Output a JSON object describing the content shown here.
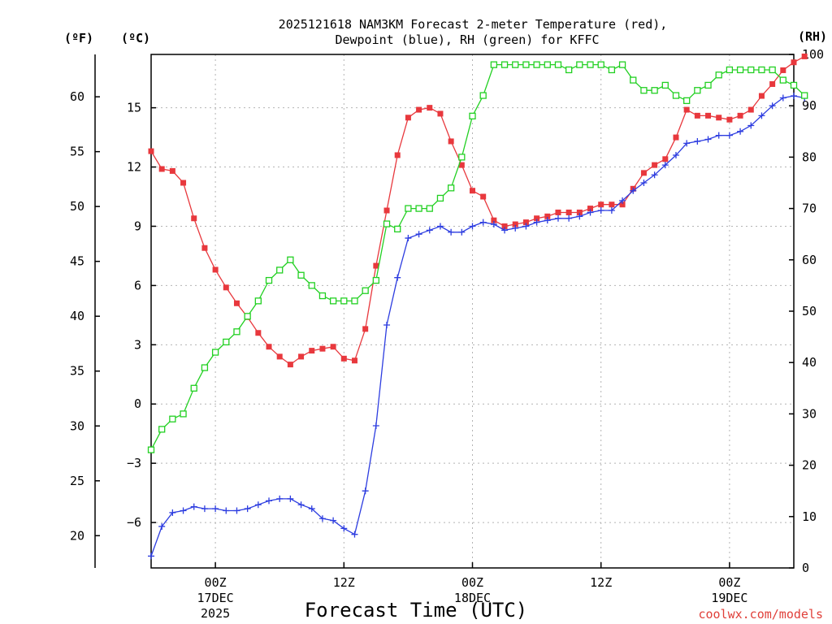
{
  "chart_data": {
    "type": "line",
    "title_line1": "2025121618 NAM3KM Forecast 2-meter Temperature (red),",
    "title_line2": "Dewpoint (blue), RH (green) for KFFC",
    "xlabel": "Forecast Time (UTC)",
    "credit": "coolwx.com/models",
    "units": {
      "fahrenheit": "(ºF)",
      "celsius": "(ºC)",
      "rh": "(RH)"
    },
    "x_range_hours": [
      0,
      60
    ],
    "x_ticks": [
      {
        "hour": 6,
        "label": "00Z",
        "date": "17DEC",
        "year": "2025"
      },
      {
        "hour": 18,
        "label": "12Z",
        "date": "",
        "year": ""
      },
      {
        "hour": 30,
        "label": "00Z",
        "date": "18DEC",
        "year": ""
      },
      {
        "hour": 42,
        "label": "12Z",
        "date": "",
        "year": ""
      },
      {
        "hour": 54,
        "label": "00Z",
        "date": "19DEC",
        "year": ""
      }
    ],
    "celsius_axis": {
      "range": [
        -8.3,
        17.7
      ],
      "ticks": [
        "-6",
        "-3",
        "0",
        "3",
        "6",
        "9",
        "12",
        "15"
      ]
    },
    "fahrenheit_axis": {
      "range": [
        17.06,
        63.86
      ],
      "ticks": [
        "20",
        "25",
        "30",
        "35",
        "40",
        "45",
        "50",
        "55",
        "60"
      ]
    },
    "rh_axis": {
      "range": [
        0,
        100
      ],
      "ticks": [
        "0",
        "10",
        "20",
        "30",
        "40",
        "50",
        "60",
        "70",
        "80",
        "90",
        "100"
      ]
    },
    "grid": true,
    "series": [
      {
        "name": "2-meter Temperature (°C)",
        "color": "#e8383d",
        "marker": "filled-square",
        "axis": "celsius",
        "values": [
          12.8,
          11.9,
          11.8,
          11.2,
          9.4,
          7.9,
          6.8,
          5.9,
          5.1,
          4.4,
          3.6,
          2.9,
          2.4,
          2.0,
          2.4,
          2.7,
          2.8,
          2.9,
          2.3,
          2.2,
          3.8,
          7.0,
          9.8,
          12.6,
          14.5,
          14.9,
          15.0,
          14.7,
          13.3,
          12.1,
          10.8,
          10.5,
          9.3,
          9.0,
          9.1,
          9.2,
          9.4,
          9.5,
          9.7,
          9.7,
          9.7,
          9.9,
          10.1,
          10.1,
          10.1,
          10.9,
          11.7,
          12.1,
          12.4,
          13.5,
          14.9,
          14.6,
          14.6,
          14.5,
          14.4,
          14.6,
          14.9,
          15.6,
          16.2,
          16.9,
          17.3,
          17.6
        ]
      },
      {
        "name": "Dewpoint (°C)",
        "color": "#2d3de0",
        "marker": "plus",
        "axis": "celsius",
        "values": [
          -7.7,
          -6.2,
          -5.5,
          -5.4,
          -5.2,
          -5.3,
          -5.3,
          -5.4,
          -5.4,
          -5.3,
          -5.1,
          -4.9,
          -4.8,
          -4.8,
          -5.1,
          -5.3,
          -5.8,
          -5.9,
          -6.3,
          -6.6,
          -4.4,
          -1.1,
          4.0,
          6.4,
          8.4,
          8.6,
          8.8,
          9.0,
          8.7,
          8.7,
          9.0,
          9.2,
          9.1,
          8.8,
          8.9,
          9.0,
          9.2,
          9.3,
          9.4,
          9.4,
          9.5,
          9.7,
          9.8,
          9.8,
          10.3,
          10.8,
          11.2,
          11.6,
          12.1,
          12.6,
          13.2,
          13.3,
          13.4,
          13.6,
          13.6,
          13.8,
          14.1,
          14.6,
          15.1,
          15.5,
          15.6,
          15.5
        ]
      },
      {
        "name": "RH (%)",
        "color": "#22d022",
        "marker": "open-square",
        "axis": "rh",
        "values": [
          23,
          27,
          29,
          30,
          35,
          39,
          42,
          44,
          46,
          49,
          52,
          56,
          58,
          60,
          57,
          55,
          53,
          52,
          52,
          52,
          54,
          56,
          67,
          66,
          70,
          70,
          70,
          72,
          74,
          80,
          88,
          92,
          98,
          98,
          98,
          98,
          98,
          98,
          98,
          97,
          98,
          98,
          98,
          97,
          98,
          95,
          93,
          93,
          94,
          92,
          91,
          93,
          94,
          96,
          97,
          97,
          97,
          97,
          97,
          95,
          94,
          92
        ]
      }
    ]
  }
}
